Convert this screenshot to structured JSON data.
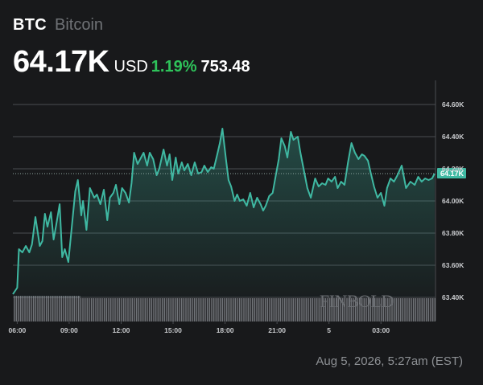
{
  "header": {
    "ticker": "BTC",
    "asset_name": "Bitcoin",
    "price": "64.17K",
    "currency": "USD",
    "change_pct": "1.19%",
    "change_abs": "753.48"
  },
  "timestamp": "Aug 5, 2026, 5:27am (EST)",
  "watermark": "FINBOLD",
  "colors": {
    "background": "#18191b",
    "line": "#3fb8a2",
    "positive": "#2ec25a",
    "grid": "#4a4d52",
    "axis_text": "#c9cbce"
  },
  "chart_data": {
    "type": "area",
    "title": "",
    "xlabel": "",
    "ylabel": "",
    "ylim": [
      63.4,
      64.6
    ],
    "y_ticks": [
      "63.40K",
      "63.60K",
      "63.80K",
      "64.00K",
      "64.20K",
      "64.40K",
      "64.60K"
    ],
    "x_ticks": [
      {
        "label": "06:00",
        "x": 0.25
      },
      {
        "label": "09:00",
        "x": 3.25
      },
      {
        "label": "12:00",
        "x": 6.25
      },
      {
        "label": "15:00",
        "x": 9.25
      },
      {
        "label": "18:00",
        "x": 12.25
      },
      {
        "label": "21:00",
        "x": 15.25
      },
      {
        "label": "5",
        "x": 18.25
      },
      {
        "label": "03:00",
        "x": 21.25
      }
    ],
    "last_value_label": "64.17K",
    "last_value": 64.17,
    "grid": true,
    "volume_bars": true,
    "series": [
      {
        "x": [
          0,
          0.25,
          0.35,
          0.55,
          0.75,
          0.95,
          1.1,
          1.3,
          1.55,
          1.7,
          1.85,
          2.0,
          2.2,
          2.35,
          2.5,
          2.7,
          2.85,
          3.0,
          3.2,
          3.4,
          3.6,
          3.75,
          3.95,
          4.05,
          4.25,
          4.45,
          4.7,
          4.85,
          5.05,
          5.25,
          5.45,
          5.6,
          5.8,
          5.95,
          6.15,
          6.3,
          6.5,
          6.7,
          6.85,
          7.0,
          7.2,
          7.4,
          7.55,
          7.75,
          7.9,
          8.1,
          8.3,
          8.45,
          8.7,
          8.9,
          9.05,
          9.2,
          9.4,
          9.55,
          9.75,
          9.9,
          10.1,
          10.3,
          10.5,
          10.7,
          10.9,
          11.05,
          11.25,
          11.45,
          11.6,
          11.8,
          11.95,
          12.1,
          12.3,
          12.45,
          12.6,
          12.8,
          12.95,
          13.1,
          13.3,
          13.5,
          13.7,
          13.9,
          14.1,
          14.3,
          14.45,
          14.6,
          14.8,
          15.0,
          15.2,
          15.35,
          15.5,
          15.7,
          15.85,
          16.05,
          16.2,
          16.45,
          16.6,
          16.8,
          17.0,
          17.2,
          17.45,
          17.65,
          17.85,
          18.05,
          18.2,
          18.4,
          18.6,
          18.75,
          18.95,
          19.15,
          19.35,
          19.55,
          19.75,
          19.95,
          20.15,
          20.3,
          20.5,
          20.65,
          20.85,
          21.05,
          21.25,
          21.45,
          21.6,
          21.8,
          22.0,
          22.2,
          22.45,
          22.7,
          22.95,
          23.2,
          23.4,
          23.6,
          23.8,
          24.0,
          24.2,
          24.35
        ],
        "values": [
          63.42,
          63.46,
          63.7,
          63.68,
          63.72,
          63.68,
          63.73,
          63.9,
          63.72,
          63.75,
          63.92,
          63.84,
          63.93,
          63.76,
          63.85,
          63.98,
          63.65,
          63.7,
          63.62,
          63.84,
          64.06,
          64.13,
          63.91,
          64.0,
          63.82,
          64.08,
          64.02,
          64.04,
          63.98,
          64.07,
          63.88,
          64.02,
          64.05,
          64.1,
          63.98,
          64.08,
          64.05,
          63.99,
          64.11,
          64.3,
          64.23,
          64.27,
          64.3,
          64.22,
          64.3,
          64.26,
          64.16,
          64.2,
          64.32,
          64.22,
          64.29,
          64.13,
          64.27,
          64.17,
          64.24,
          64.19,
          64.23,
          64.16,
          64.24,
          64.17,
          64.18,
          64.22,
          64.18,
          64.21,
          64.2,
          64.29,
          64.36,
          64.45,
          64.26,
          64.13,
          64.09,
          64.0,
          64.04,
          64.0,
          64.01,
          63.97,
          64.05,
          63.96,
          64.02,
          63.98,
          63.94,
          63.97,
          64.03,
          64.05,
          64.17,
          64.26,
          64.39,
          64.34,
          64.27,
          64.43,
          64.38,
          64.4,
          64.3,
          64.19,
          64.08,
          64.02,
          64.14,
          64.09,
          64.11,
          64.1,
          64.14,
          64.12,
          64.15,
          64.08,
          64.12,
          64.1,
          64.24,
          64.36,
          64.3,
          64.26,
          64.29,
          64.28,
          64.25,
          64.18,
          64.09,
          64.02,
          64.05,
          63.97,
          64.08,
          64.14,
          64.12,
          64.16,
          64.22,
          64.08,
          64.12,
          64.1,
          64.15,
          64.12,
          64.14,
          64.13,
          64.14,
          64.17
        ]
      }
    ]
  }
}
